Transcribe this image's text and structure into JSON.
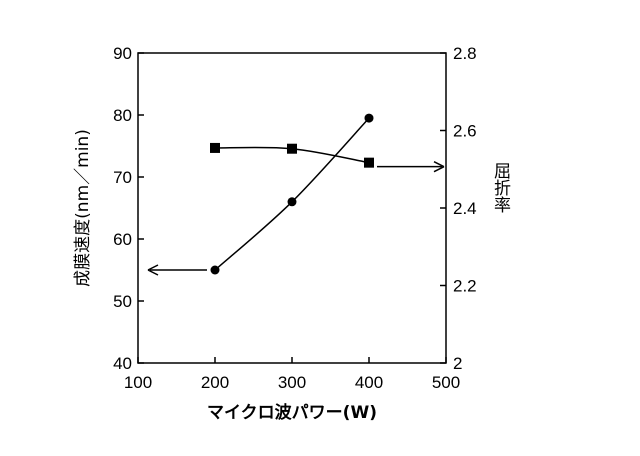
{
  "chart_data": {
    "type": "line",
    "xlabel": "マイクロ波パワー(W)",
    "ylabel_left": "成膜速度(nm／min)",
    "ylabel_right": "屈折率",
    "x_ticks": [
      "100",
      "200",
      "300",
      "400",
      "500"
    ],
    "y_left_ticks": [
      "40",
      "50",
      "60",
      "70",
      "80",
      "90"
    ],
    "y_right_ticks": [
      "2",
      "2.2",
      "2.4",
      "2.6",
      "2.8"
    ],
    "xlim": [
      100,
      500
    ],
    "ylim_left": [
      40,
      90
    ],
    "ylim_right": [
      2.0,
      2.8
    ],
    "grid": false,
    "series": [
      {
        "axis": "left",
        "marker": "circle",
        "x": [
          200,
          300,
          400
        ],
        "y": [
          55,
          66,
          79.5
        ]
      },
      {
        "axis": "right",
        "marker": "square",
        "x": [
          200,
          300,
          400
        ],
        "y": [
          2.555,
          2.553,
          2.517
        ]
      }
    ],
    "annotations": [
      {
        "type": "arrow",
        "direction": "left",
        "points_to_axis": "left"
      },
      {
        "type": "arrow",
        "direction": "right",
        "points_to_axis": "right"
      }
    ]
  }
}
